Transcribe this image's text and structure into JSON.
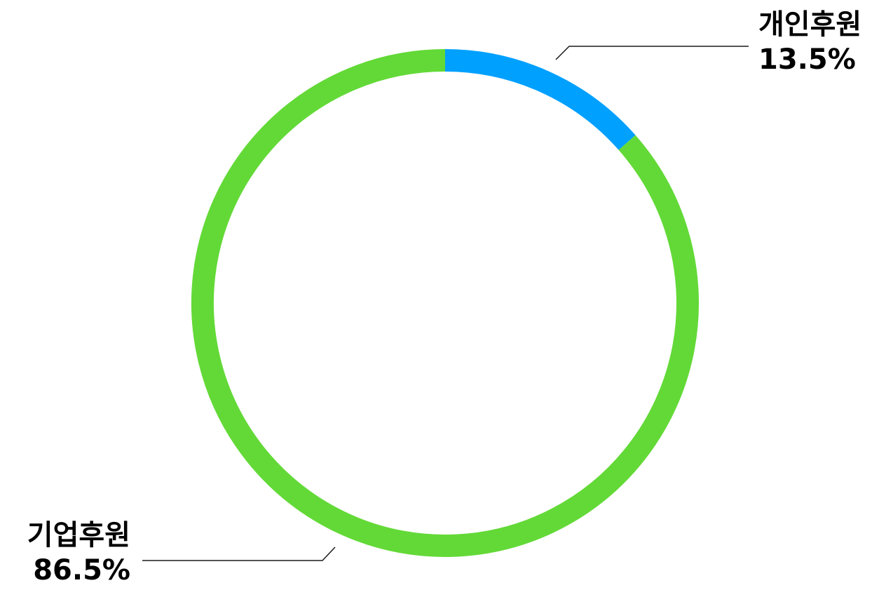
{
  "chart_data": {
    "type": "pie",
    "donut": true,
    "categories": [
      "개인후원",
      "기업후원"
    ],
    "values": [
      13.5,
      86.5
    ],
    "value_labels": [
      "13.5%",
      "86.5%"
    ],
    "colors": [
      "#00a0ff",
      "#63d937"
    ],
    "start_angle_deg": 0,
    "direction": "clockwise",
    "legend": "none",
    "labels_position": "outside-with-leader-lines"
  }
}
